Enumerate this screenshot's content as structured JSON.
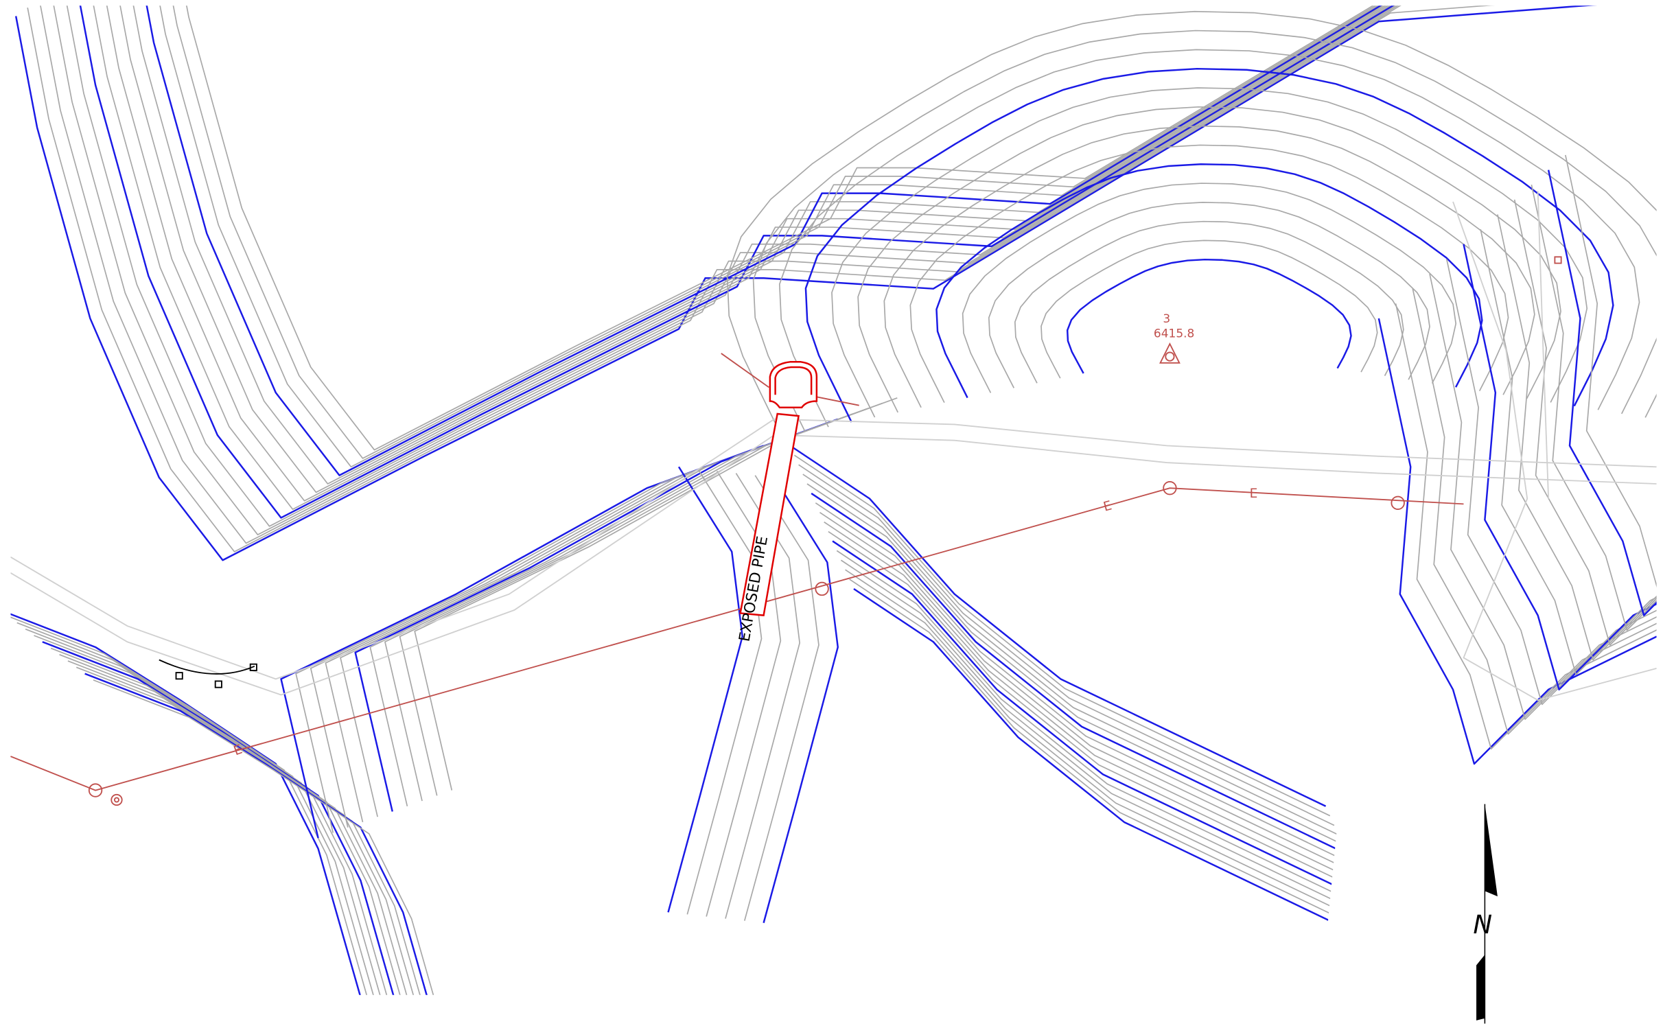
{
  "survey_point": {
    "id": "3",
    "elevation": "6415.8"
  },
  "pipe_label": "EXPOSED PIPE",
  "line_markers": [
    "E",
    "E",
    "E"
  ],
  "north_arrow": "N"
}
